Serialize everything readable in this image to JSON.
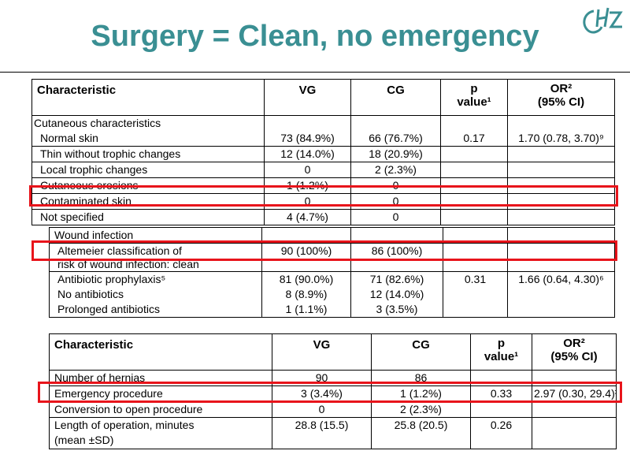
{
  "title": "Surgery = Clean, no emergency",
  "logo": {
    "icon": "chz-logo",
    "color": "#3a8f93"
  },
  "colors": {
    "title": "#3a8f93",
    "highlight": "#e8141b"
  },
  "table1": {
    "headers": {
      "characteristic": "Characteristic",
      "vg": "VG",
      "cg": "CG",
      "p_line1": "p",
      "p_line2": "value¹",
      "or_line1": "OR²",
      "or_line2": "(95% CI)"
    },
    "section": "Cutaneous characteristics",
    "rows": [
      {
        "label": "Normal skin",
        "vg": "73 (84.9%)",
        "cg": "66 (76.7%)",
        "p": "0.17",
        "or": "1.70 (0.78, 3.70)⁹"
      },
      {
        "label": "Thin without trophic changes",
        "vg": "12 (14.0%)",
        "cg": "18 (20.9%)",
        "p": "",
        "or": ""
      },
      {
        "label": "Local trophic changes",
        "vg": "0",
        "cg": "2 (2.3%)",
        "p": "",
        "or": ""
      },
      {
        "label": "Cutaneous erosions",
        "vg": "1 (1.2%)",
        "cg": "0",
        "p": "",
        "or": ""
      },
      {
        "label": "Contaminated skin",
        "vg": "0",
        "cg": "0",
        "p": "",
        "or": ""
      },
      {
        "label": "Not specified",
        "vg": "4 (4.7%)",
        "cg": "0",
        "p": "",
        "or": ""
      }
    ]
  },
  "table2": {
    "section": "Wound infection",
    "altemeier_line1": "Altemeier classification of",
    "altemeier_line2": "risk of wound infection: clean",
    "altemeier_vg": "90 (100%)",
    "altemeier_cg": "86 (100%)",
    "rows": [
      {
        "label": "Antibiotic prophylaxis⁵",
        "vg": "81 (90.0%)",
        "cg": "71 (82.6%)",
        "p": "0.31",
        "or": "1.66 (0.64, 4.30)⁶"
      },
      {
        "label": "No antibiotics",
        "vg": "8 (8.9%)",
        "cg": "12 (14.0%)",
        "p": "",
        "or": ""
      },
      {
        "label": "Prolonged antibiotics",
        "vg": "1 (1.1%)",
        "cg": "3 (3.5%)",
        "p": "",
        "or": ""
      }
    ]
  },
  "table3": {
    "headers": {
      "characteristic": "Characteristic",
      "vg": "VG",
      "cg": "CG",
      "p_line1": "p",
      "p_line2": "value¹",
      "or_line1": "OR²",
      "or_line2": "(95% CI)"
    },
    "rows": [
      {
        "label": "Number of hernias",
        "vg": "90",
        "cg": "86",
        "p": "",
        "or": ""
      },
      {
        "label": "Emergency procedure",
        "vg": "3 (3.4%)",
        "cg": "1 (1.2%)",
        "p": "0.33",
        "or": "2.97 (0.30, 29.4)³"
      },
      {
        "label": "Conversion to open procedure",
        "vg": "0",
        "cg": "2 (2.3%)",
        "p": "",
        "or": ""
      }
    ],
    "length_line1": "Length of operation, minutes",
    "length_line2": "(mean ±SD)",
    "length_vg": "28.8 (15.5)",
    "length_cg": "25.8 (20.5)",
    "length_p": "0.26"
  }
}
